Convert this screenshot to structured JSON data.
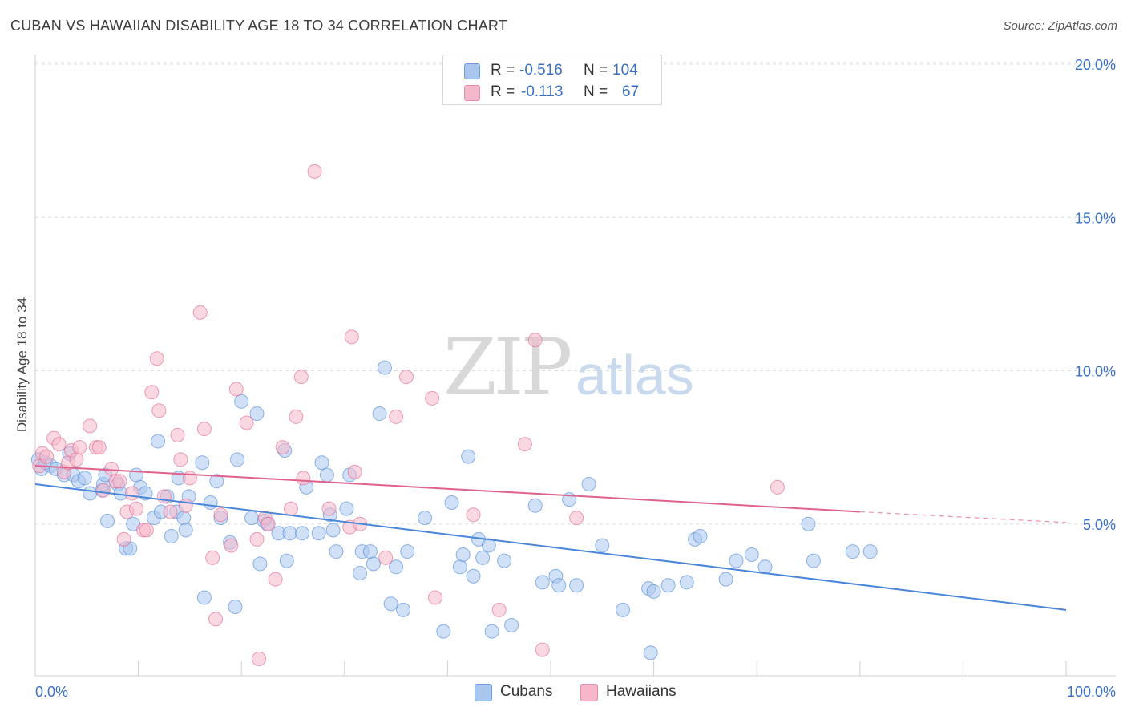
{
  "header": {
    "title": "CUBAN VS HAWAIIAN DISABILITY AGE 18 TO 34 CORRELATION CHART",
    "source": "Source: ZipAtlas.com"
  },
  "watermark": {
    "zip": "ZIP",
    "atlas": "atlas"
  },
  "stats": {
    "rows": [
      {
        "r_label": "R =",
        "r_value": "-0.516",
        "n_label": "N =",
        "n_value": "104",
        "color": "#a9c6ee"
      },
      {
        "r_label": "R =",
        "r_value": "-0.113",
        "n_label": "N =",
        "n_value": "67",
        "color": "#f5b8ca"
      }
    ]
  },
  "legend": {
    "items": [
      {
        "label": "Cubans",
        "color": "#a9c6ee"
      },
      {
        "label": "Hawaiians",
        "color": "#f5b8ca"
      }
    ]
  },
  "chart_data": {
    "type": "scatter",
    "title": "CUBAN VS HAWAIIAN DISABILITY AGE 18 TO 34 CORRELATION CHART",
    "xlabel": "",
    "ylabel": "Disability Age 18 to 34",
    "xlim": [
      0,
      100
    ],
    "ylim": [
      0,
      20.5
    ],
    "x_tick_labels": [
      "0.0%",
      "100.0%"
    ],
    "y_ticks": [
      5,
      10,
      15,
      20
    ],
    "y_tick_labels": [
      "5.0%",
      "10.0%",
      "15.0%",
      "20.0%"
    ],
    "grid": "horizontal dashed",
    "legend_position": "bottom-center",
    "series": [
      {
        "name": "Cubans",
        "color": "#4a86d8",
        "fill": "#a9c6ee",
        "trend": {
          "x": [
            0,
            100
          ],
          "y": [
            6.3,
            2.2
          ]
        },
        "points": [
          [
            0.3,
            7.1
          ],
          [
            0.6,
            6.8
          ],
          [
            1.0,
            7.0
          ],
          [
            1.5,
            6.9
          ],
          [
            2.0,
            6.8
          ],
          [
            2.8,
            6.6
          ],
          [
            3.3,
            7.3
          ],
          [
            3.7,
            6.6
          ],
          [
            4.2,
            6.4
          ],
          [
            4.8,
            6.5
          ],
          [
            5.3,
            6.0
          ],
          [
            6.5,
            6.1
          ],
          [
            6.6,
            6.3
          ],
          [
            6.8,
            6.6
          ],
          [
            7.0,
            5.1
          ],
          [
            8.0,
            6.3
          ],
          [
            8.3,
            6.0
          ],
          [
            8.8,
            4.2
          ],
          [
            9.2,
            4.2
          ],
          [
            9.5,
            5.0
          ],
          [
            9.8,
            6.6
          ],
          [
            10.2,
            6.2
          ],
          [
            10.7,
            6.0
          ],
          [
            11.5,
            5.2
          ],
          [
            11.9,
            7.7
          ],
          [
            12.2,
            5.4
          ],
          [
            12.8,
            5.9
          ],
          [
            13.2,
            4.6
          ],
          [
            13.7,
            5.4
          ],
          [
            13.9,
            6.5
          ],
          [
            14.4,
            5.2
          ],
          [
            14.6,
            4.8
          ],
          [
            14.9,
            5.9
          ],
          [
            16.2,
            7.0
          ],
          [
            16.4,
            2.6
          ],
          [
            17.0,
            5.7
          ],
          [
            17.6,
            6.4
          ],
          [
            18.0,
            5.2
          ],
          [
            18.9,
            4.4
          ],
          [
            19.4,
            2.3
          ],
          [
            19.6,
            7.1
          ],
          [
            20.0,
            9.0
          ],
          [
            21.0,
            5.2
          ],
          [
            21.5,
            8.6
          ],
          [
            21.8,
            3.7
          ],
          [
            22.2,
            5.1
          ],
          [
            22.5,
            5.0
          ],
          [
            23.6,
            4.7
          ],
          [
            24.2,
            7.4
          ],
          [
            24.4,
            3.8
          ],
          [
            24.7,
            4.7
          ],
          [
            25.9,
            4.7
          ],
          [
            26.3,
            6.2
          ],
          [
            27.5,
            4.7
          ],
          [
            27.8,
            7.0
          ],
          [
            28.3,
            6.6
          ],
          [
            28.6,
            5.3
          ],
          [
            28.9,
            4.8
          ],
          [
            29.2,
            4.1
          ],
          [
            30.2,
            5.5
          ],
          [
            30.5,
            6.6
          ],
          [
            31.5,
            3.4
          ],
          [
            31.7,
            4.1
          ],
          [
            32.5,
            4.1
          ],
          [
            32.8,
            3.7
          ],
          [
            33.4,
            8.6
          ],
          [
            33.9,
            10.1
          ],
          [
            34.5,
            2.4
          ],
          [
            35.0,
            3.6
          ],
          [
            35.7,
            2.2
          ],
          [
            36.1,
            4.1
          ],
          [
            37.8,
            5.2
          ],
          [
            39.6,
            1.5
          ],
          [
            40.4,
            5.7
          ],
          [
            41.2,
            3.6
          ],
          [
            41.5,
            4.0
          ],
          [
            42.0,
            7.2
          ],
          [
            42.5,
            3.3
          ],
          [
            43.0,
            4.5
          ],
          [
            43.4,
            3.9
          ],
          [
            44.0,
            4.3
          ],
          [
            44.3,
            1.5
          ],
          [
            45.5,
            3.8
          ],
          [
            46.2,
            1.7
          ],
          [
            48.5,
            5.6
          ],
          [
            49.2,
            3.1
          ],
          [
            50.5,
            3.3
          ],
          [
            50.8,
            3.0
          ],
          [
            51.8,
            5.8
          ],
          [
            52.5,
            3.0
          ],
          [
            53.7,
            6.3
          ],
          [
            55.0,
            4.3
          ],
          [
            57.0,
            2.2
          ],
          [
            59.5,
            2.9
          ],
          [
            59.7,
            0.8
          ],
          [
            60.0,
            2.8
          ],
          [
            61.4,
            3.0
          ],
          [
            64.0,
            4.5
          ],
          [
            64.5,
            4.6
          ],
          [
            67.0,
            3.2
          ],
          [
            68.0,
            3.8
          ],
          [
            69.5,
            4.0
          ],
          [
            70.8,
            3.6
          ],
          [
            75.0,
            5.0
          ],
          [
            75.5,
            3.8
          ],
          [
            79.3,
            4.1
          ],
          [
            81.0,
            4.1
          ],
          [
            63.2,
            3.1
          ]
        ]
      },
      {
        "name": "Hawaiians",
        "color": "#e0628c",
        "fill": "#f5b8ca",
        "trend": {
          "x": [
            0,
            80
          ],
          "y": [
            6.9,
            5.4
          ]
        },
        "trend_dashed": {
          "x": [
            80,
            100
          ],
          "y": [
            5.4,
            5.05
          ]
        },
        "points": [
          [
            0.4,
            6.9
          ],
          [
            0.7,
            7.3
          ],
          [
            1.1,
            7.2
          ],
          [
            1.8,
            7.8
          ],
          [
            2.3,
            7.6
          ],
          [
            2.8,
            6.7
          ],
          [
            3.2,
            7.0
          ],
          [
            3.5,
            7.4
          ],
          [
            4.0,
            7.1
          ],
          [
            4.3,
            7.5
          ],
          [
            5.3,
            8.2
          ],
          [
            5.9,
            7.5
          ],
          [
            6.2,
            7.5
          ],
          [
            6.6,
            6.1
          ],
          [
            7.4,
            6.8
          ],
          [
            7.8,
            6.4
          ],
          [
            8.2,
            6.4
          ],
          [
            8.6,
            4.5
          ],
          [
            8.9,
            5.4
          ],
          [
            9.4,
            6.0
          ],
          [
            9.8,
            5.5
          ],
          [
            10.5,
            4.8
          ],
          [
            10.8,
            4.8
          ],
          [
            11.3,
            9.3
          ],
          [
            11.8,
            10.4
          ],
          [
            12.0,
            8.7
          ],
          [
            12.5,
            5.9
          ],
          [
            13.1,
            5.4
          ],
          [
            13.8,
            7.9
          ],
          [
            14.1,
            7.1
          ],
          [
            14.6,
            5.6
          ],
          [
            15.0,
            6.5
          ],
          [
            16.0,
            11.9
          ],
          [
            16.4,
            8.1
          ],
          [
            17.2,
            3.9
          ],
          [
            17.5,
            1.9
          ],
          [
            18.0,
            5.3
          ],
          [
            19.0,
            4.3
          ],
          [
            19.5,
            9.4
          ],
          [
            20.5,
            8.3
          ],
          [
            21.5,
            4.5
          ],
          [
            21.7,
            0.6
          ],
          [
            22.3,
            5.2
          ],
          [
            22.6,
            5.0
          ],
          [
            23.3,
            3.2
          ],
          [
            24.0,
            7.5
          ],
          [
            24.8,
            5.5
          ],
          [
            25.3,
            8.5
          ],
          [
            25.8,
            9.8
          ],
          [
            26.0,
            6.5
          ],
          [
            27.1,
            16.5
          ],
          [
            28.5,
            5.5
          ],
          [
            30.5,
            4.9
          ],
          [
            30.7,
            11.1
          ],
          [
            31.0,
            6.7
          ],
          [
            31.5,
            5.0
          ],
          [
            34.0,
            3.9
          ],
          [
            35.0,
            8.5
          ],
          [
            36.0,
            9.8
          ],
          [
            38.5,
            9.1
          ],
          [
            38.8,
            2.6
          ],
          [
            42.5,
            5.3
          ],
          [
            45.0,
            2.2
          ],
          [
            47.5,
            7.6
          ],
          [
            48.5,
            11.0
          ],
          [
            49.2,
            0.9
          ],
          [
            52.5,
            5.2
          ],
          [
            72.0,
            6.2
          ]
        ]
      }
    ]
  }
}
